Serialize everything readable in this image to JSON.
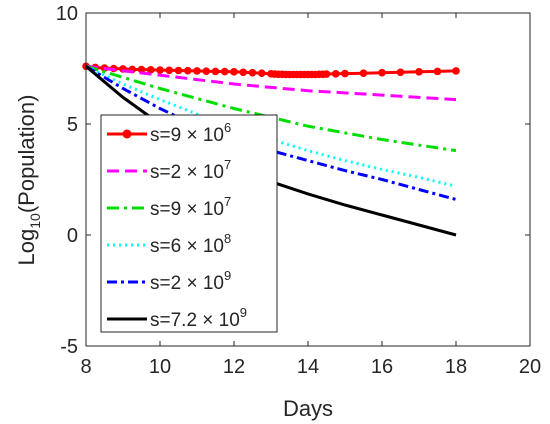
{
  "chart_data": {
    "type": "line",
    "xlabel": "Days",
    "ylabel": {
      "main": "Log",
      "sub": "10",
      "rest": "(Population)"
    },
    "xlim": [
      8,
      20
    ],
    "ylim": [
      -5,
      10
    ],
    "xticks": [
      8,
      10,
      12,
      14,
      16,
      18,
      20
    ],
    "yticks": [
      -5,
      0,
      5,
      10
    ],
    "grid": false,
    "legend_placement": "left, inside",
    "series": [
      {
        "id": "s1",
        "label": {
          "base": "s=9 × 10",
          "exp": "6"
        },
        "color": "#ff0000",
        "style": "solid-marker",
        "x": [
          8,
          8.25,
          8.5,
          8.75,
          9,
          9.25,
          9.5,
          9.75,
          10,
          10.25,
          10.5,
          10.75,
          11,
          11.25,
          11.5,
          11.75,
          12,
          12.25,
          12.5,
          12.75,
          13,
          13.1,
          13.2,
          13.3,
          13.4,
          13.5,
          13.6,
          13.7,
          13.8,
          13.9,
          14,
          14.1,
          14.2,
          14.3,
          14.4,
          14.5,
          14.75,
          15,
          15.5,
          16,
          16.5,
          17,
          17.5,
          18
        ],
        "y": [
          7.6,
          7.55,
          7.52,
          7.5,
          7.48,
          7.46,
          7.45,
          7.44,
          7.43,
          7.42,
          7.41,
          7.4,
          7.39,
          7.38,
          7.37,
          7.36,
          7.35,
          7.33,
          7.31,
          7.29,
          7.26,
          7.25,
          7.24,
          7.24,
          7.23,
          7.23,
          7.23,
          7.23,
          7.23,
          7.23,
          7.23,
          7.23,
          7.23,
          7.24,
          7.24,
          7.25,
          7.26,
          7.27,
          7.29,
          7.31,
          7.33,
          7.35,
          7.37,
          7.39
        ]
      },
      {
        "id": "s2",
        "label": {
          "base": "s=2 × 10",
          "exp": "7"
        },
        "color": "#ff00ff",
        "style": "dashed",
        "x": [
          8,
          9,
          10,
          11,
          12,
          13,
          14,
          15,
          16,
          17,
          18
        ],
        "y": [
          7.6,
          7.4,
          7.2,
          7.0,
          6.8,
          6.65,
          6.5,
          6.4,
          6.3,
          6.2,
          6.1
        ]
      },
      {
        "id": "s3",
        "label": {
          "base": "s=9 × 10",
          "exp": "7"
        },
        "color": "#00dd00",
        "style": "dashdot",
        "x": [
          8,
          9,
          10,
          11,
          12,
          13,
          14,
          15,
          16,
          17,
          18
        ],
        "y": [
          7.6,
          7.1,
          6.6,
          6.15,
          5.7,
          5.3,
          4.9,
          4.6,
          4.3,
          4.05,
          3.8
        ]
      },
      {
        "id": "s4",
        "label": {
          "base": "s=6 × 10",
          "exp": "8"
        },
        "color": "#00ffff",
        "style": "dotted",
        "x": [
          8,
          9,
          10,
          11,
          12,
          13,
          14,
          15,
          16,
          17,
          18
        ],
        "y": [
          7.6,
          6.8,
          6.1,
          5.45,
          4.85,
          4.3,
          3.8,
          3.35,
          2.95,
          2.6,
          2.2
        ]
      },
      {
        "id": "s5",
        "label": {
          "base": "s=2 × 10",
          "exp": "9"
        },
        "color": "#0000ff",
        "style": "dashdot2",
        "x": [
          8,
          9,
          10,
          11,
          12,
          13,
          14,
          15,
          16,
          17,
          18
        ],
        "y": [
          7.6,
          6.6,
          5.7,
          4.9,
          4.3,
          3.8,
          3.35,
          2.9,
          2.5,
          2.05,
          1.6
        ]
      },
      {
        "id": "s6",
        "label": {
          "base": "s=7.2 × 10",
          "exp": "9"
        },
        "color": "#000000",
        "style": "solid",
        "x": [
          8,
          9,
          10,
          11,
          12,
          13,
          14,
          15,
          16,
          17,
          18
        ],
        "y": [
          7.6,
          6.2,
          5.0,
          4.0,
          3.1,
          2.4,
          1.85,
          1.35,
          0.9,
          0.45,
          0.0
        ]
      }
    ]
  }
}
